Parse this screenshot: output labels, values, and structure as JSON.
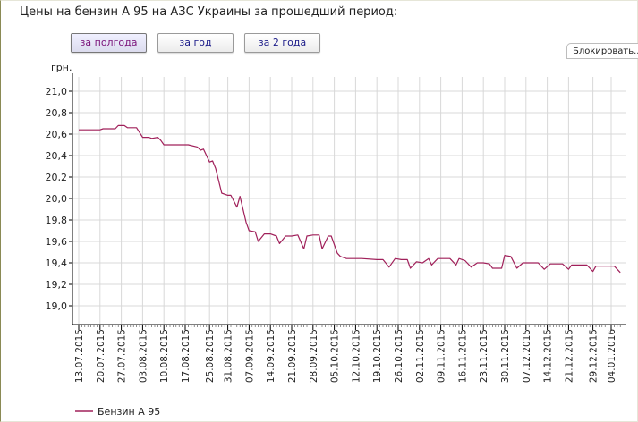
{
  "page": {
    "title": "Цены на бензин А 95 на АЗС Украины за прошедший период:",
    "buttons": [
      {
        "label": "за полгода",
        "active": true
      },
      {
        "label": "за год",
        "active": false
      },
      {
        "label": "за 2 года",
        "active": false
      }
    ],
    "lock_label": "Блокировать..."
  },
  "colors": {
    "series": "#a0205a",
    "grid": "#d8d8d8",
    "axis": "#000000",
    "button_text": "#1a1a88",
    "button_active_text": "#7a137a"
  },
  "chart_data": {
    "type": "line",
    "ylabel": "грн.",
    "ylim": [
      18.9,
      21.05
    ],
    "y_ticks": [
      "19,0",
      "19,2",
      "19,4",
      "19,6",
      "19,8",
      "20,0",
      "20,2",
      "20,4",
      "20,6",
      "20,8",
      "21,0"
    ],
    "y_tick_values": [
      19.0,
      19.2,
      19.4,
      19.6,
      19.8,
      20.0,
      20.2,
      20.4,
      20.6,
      20.8,
      21.0
    ],
    "x_range": [
      "2015-07-13",
      "2016-01-07"
    ],
    "x_ticks": [
      "13.07.2015",
      "20.07.2015",
      "27.07.2015",
      "03.08.2015",
      "10.08.2015",
      "17.08.2015",
      "25.08.2015",
      "31.08.2015",
      "07.09.2015",
      "14.09.2015",
      "21.09.2015",
      "28.09.2015",
      "05.10.2015",
      "12.10.2015",
      "19.10.2015",
      "26.10.2015",
      "02.11.2015",
      "09.11.2015",
      "16.11.2015",
      "23.11.2015",
      "30.11.2015",
      "07.12.2015",
      "14.12.2015",
      "21.12.2015",
      "29.12.2015",
      "04.01.2016"
    ],
    "grid": true,
    "legend_position": "bottom-left",
    "series": [
      {
        "name": "Бензин А 95",
        "points": [
          [
            "2015-07-13",
            20.64
          ],
          [
            "2015-07-20",
            20.64
          ],
          [
            "2015-07-21",
            20.65
          ],
          [
            "2015-07-25",
            20.65
          ],
          [
            "2015-07-26",
            20.68
          ],
          [
            "2015-07-28",
            20.68
          ],
          [
            "2015-07-29",
            20.66
          ],
          [
            "2015-08-01",
            20.66
          ],
          [
            "2015-08-03",
            20.57
          ],
          [
            "2015-08-05",
            20.57
          ],
          [
            "2015-08-06",
            20.56
          ],
          [
            "2015-08-08",
            20.57
          ],
          [
            "2015-08-09",
            20.54
          ],
          [
            "2015-08-10",
            20.5
          ],
          [
            "2015-08-18",
            20.5
          ],
          [
            "2015-08-21",
            20.48
          ],
          [
            "2015-08-22",
            20.45
          ],
          [
            "2015-08-23",
            20.46
          ],
          [
            "2015-08-25",
            20.34
          ],
          [
            "2015-08-26",
            20.35
          ],
          [
            "2015-08-27",
            20.28
          ],
          [
            "2015-08-29",
            20.05
          ],
          [
            "2015-08-31",
            20.03
          ],
          [
            "2015-09-01",
            20.03
          ],
          [
            "2015-09-03",
            19.92
          ],
          [
            "2015-09-04",
            20.02
          ],
          [
            "2015-09-06",
            19.78
          ],
          [
            "2015-09-07",
            19.7
          ],
          [
            "2015-09-09",
            19.69
          ],
          [
            "2015-09-10",
            19.6
          ],
          [
            "2015-09-12",
            19.67
          ],
          [
            "2015-09-14",
            19.67
          ],
          [
            "2015-09-16",
            19.65
          ],
          [
            "2015-09-17",
            19.58
          ],
          [
            "2015-09-19",
            19.65
          ],
          [
            "2015-09-21",
            19.65
          ],
          [
            "2015-09-23",
            19.66
          ],
          [
            "2015-09-25",
            19.53
          ],
          [
            "2015-09-26",
            19.65
          ],
          [
            "2015-09-28",
            19.66
          ],
          [
            "2015-09-30",
            19.66
          ],
          [
            "2015-10-01",
            19.53
          ],
          [
            "2015-10-03",
            19.65
          ],
          [
            "2015-10-04",
            19.65
          ],
          [
            "2015-10-06",
            19.49
          ],
          [
            "2015-10-07",
            19.46
          ],
          [
            "2015-10-09",
            19.44
          ],
          [
            "2015-10-14",
            19.44
          ],
          [
            "2015-10-19",
            19.43
          ],
          [
            "2015-10-21",
            19.43
          ],
          [
            "2015-10-23",
            19.36
          ],
          [
            "2015-10-25",
            19.44
          ],
          [
            "2015-10-27",
            19.43
          ],
          [
            "2015-10-29",
            19.43
          ],
          [
            "2015-10-30",
            19.35
          ],
          [
            "2015-11-01",
            19.41
          ],
          [
            "2015-11-03",
            19.4
          ],
          [
            "2015-11-05",
            19.44
          ],
          [
            "2015-11-06",
            19.38
          ],
          [
            "2015-11-08",
            19.44
          ],
          [
            "2015-11-12",
            19.44
          ],
          [
            "2015-11-14",
            19.38
          ],
          [
            "2015-11-15",
            19.44
          ],
          [
            "2015-11-17",
            19.42
          ],
          [
            "2015-11-19",
            19.36
          ],
          [
            "2015-11-21",
            19.4
          ],
          [
            "2015-11-23",
            19.4
          ],
          [
            "2015-11-25",
            19.39
          ],
          [
            "2015-11-26",
            19.35
          ],
          [
            "2015-11-29",
            19.35
          ],
          [
            "2015-11-30",
            19.47
          ],
          [
            "2015-12-02",
            19.46
          ],
          [
            "2015-12-04",
            19.35
          ],
          [
            "2015-12-06",
            19.4
          ],
          [
            "2015-12-11",
            19.4
          ],
          [
            "2015-12-13",
            19.34
          ],
          [
            "2015-12-15",
            19.39
          ],
          [
            "2015-12-19",
            19.39
          ],
          [
            "2015-12-21",
            19.34
          ],
          [
            "2015-12-22",
            19.38
          ],
          [
            "2015-12-27",
            19.38
          ],
          [
            "2015-12-29",
            19.32
          ],
          [
            "2015-12-30",
            19.37
          ],
          [
            "2016-01-05",
            19.37
          ],
          [
            "2016-01-06",
            19.34
          ],
          [
            "2016-01-07",
            19.31
          ]
        ]
      }
    ]
  }
}
